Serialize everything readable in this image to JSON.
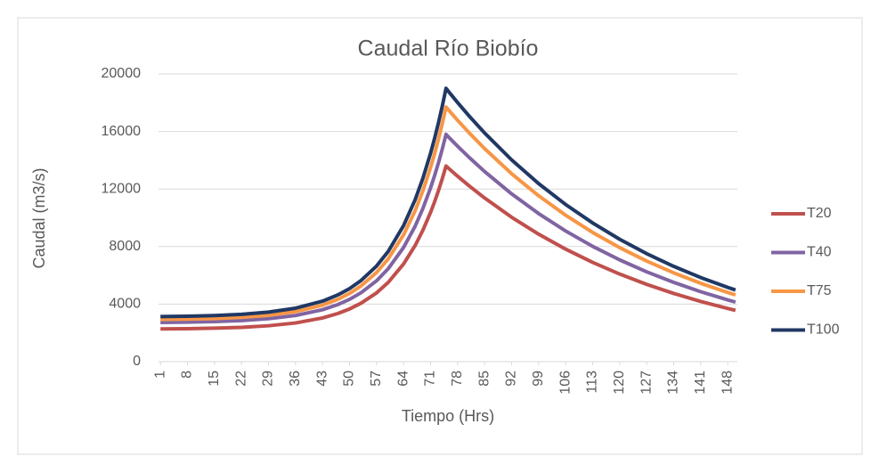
{
  "chart_data": {
    "type": "line",
    "title": "Caudal Río Biobío",
    "x_label": "Tiempo (Hrs)",
    "y_label": "Caudal (m3/s)",
    "x": [
      1,
      8,
      15,
      22,
      29,
      36,
      43,
      47,
      50,
      53,
      57,
      60,
      64,
      67,
      69,
      71,
      72,
      73,
      74,
      75,
      76,
      78,
      81,
      85,
      92,
      99,
      106,
      113,
      120,
      127,
      134,
      141,
      148,
      150
    ],
    "series": [
      {
        "name": "T20",
        "color": "#c0504d",
        "values": [
          2274,
          2293,
          2326,
          2387,
          2496,
          2690,
          3039,
          3351,
          3663,
          4066,
          4781,
          5502,
          6790,
          8073,
          9134,
          10382,
          11089,
          11858,
          12692,
          13600,
          13359,
          12890,
          12218,
          11376,
          10038,
          8859,
          7819,
          6899,
          6089,
          5373,
          4742,
          4185,
          3694,
          3565
        ]
      },
      {
        "name": "T40",
        "color": "#8064a2",
        "values": [
          2728,
          2750,
          2788,
          2859,
          2984,
          3208,
          3610,
          3971,
          4331,
          4796,
          5621,
          6453,
          7940,
          9420,
          10645,
          12086,
          12902,
          13789,
          14752,
          15800,
          15520,
          14975,
          14195,
          13217,
          11662,
          10292,
          9083,
          8015,
          7074,
          6243,
          5509,
          4862,
          4291,
          4141
        ]
      },
      {
        "name": "T75",
        "color": "#f79646",
        "values": [
          2931,
          2956,
          2999,
          3079,
          3221,
          3474,
          3929,
          4336,
          4743,
          5268,
          6200,
          7140,
          8820,
          10492,
          11876,
          13504,
          14426,
          15428,
          16516,
          17700,
          17387,
          16776,
          15902,
          14806,
          13064,
          11530,
          10176,
          8979,
          7924,
          6993,
          6172,
          5446,
          4807,
          4639
        ]
      },
      {
        "name": "T100",
        "color": "#203864",
        "values": [
          3133,
          3160,
          3207,
          3292,
          3445,
          3717,
          4205,
          4642,
          5080,
          5644,
          6646,
          7655,
          9460,
          11257,
          12743,
          14492,
          15483,
          16559,
          17728,
          19000,
          18664,
          18008,
          17070,
          15894,
          14024,
          12377,
          10923,
          9639,
          8506,
          7507,
          6625,
          5846,
          5160,
          4980
        ]
      }
    ],
    "xlim": [
      0.5,
      150.5
    ],
    "xticks": [
      1,
      8,
      15,
      22,
      29,
      36,
      43,
      50,
      57,
      64,
      71,
      78,
      85,
      92,
      99,
      106,
      113,
      120,
      127,
      134,
      141,
      148
    ],
    "ylim": [
      0,
      20000
    ],
    "yticks": [
      0,
      4000,
      8000,
      12000,
      16000,
      20000
    ],
    "grid": true,
    "legend": "right"
  }
}
